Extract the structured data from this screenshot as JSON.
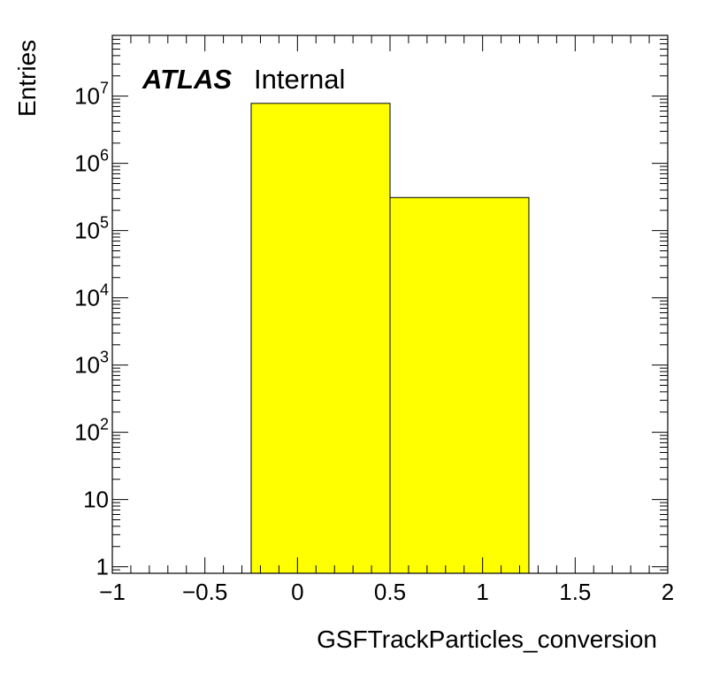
{
  "chart_data": {
    "type": "bar",
    "histogram": true,
    "bin_edges": [
      -0.25,
      0.5,
      1.25
    ],
    "values": [
      7800000,
      310000
    ],
    "fill_color": "#ffff00",
    "edge_color": "#000000",
    "xlabel": "GSFTrackParticles_conversion",
    "ylabel": "Entries",
    "xlim": [
      -1,
      2
    ],
    "ylim": [
      0.8,
      80000000
    ],
    "y_scale": "log",
    "x_ticks": [
      {
        "value": -1,
        "label": "−1"
      },
      {
        "value": -0.5,
        "label": "−0.5"
      },
      {
        "value": 0,
        "label": "0"
      },
      {
        "value": 0.5,
        "label": "0.5"
      },
      {
        "value": 1,
        "label": "1"
      },
      {
        "value": 1.5,
        "label": "1.5"
      },
      {
        "value": 2,
        "label": "2"
      }
    ],
    "y_ticks": [
      {
        "value": 1,
        "base": "1",
        "exp": ""
      },
      {
        "value": 10,
        "base": "10",
        "exp": ""
      },
      {
        "value": 100,
        "base": "10",
        "exp": "2"
      },
      {
        "value": 1000,
        "base": "10",
        "exp": "3"
      },
      {
        "value": 10000,
        "base": "10",
        "exp": "4"
      },
      {
        "value": 100000,
        "base": "10",
        "exp": "5"
      },
      {
        "value": 1000000,
        "base": "10",
        "exp": "6"
      },
      {
        "value": 10000000,
        "base": "10",
        "exp": "7"
      }
    ],
    "experiment_label": "ATLAS",
    "status_label": "Internal",
    "grid": false,
    "legend": "none"
  }
}
